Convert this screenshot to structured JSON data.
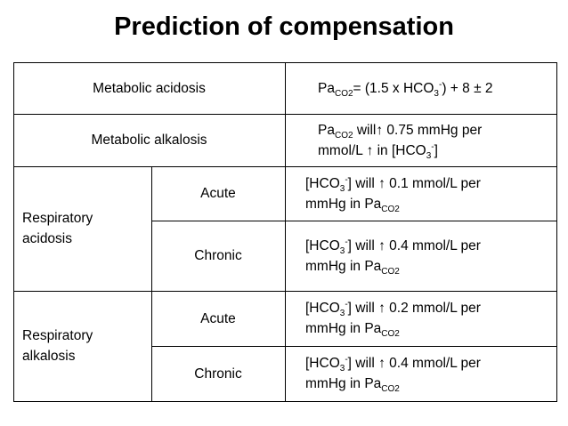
{
  "title": "Prediction of compensation",
  "table": {
    "rows": [
      {
        "condition": "Metabolic acidosis",
        "rule": [
          [
            {
              "text": "Pa"
            },
            {
              "sub": "CO2"
            },
            {
              "text": "= (1.5 x HCO"
            },
            {
              "sub": "3"
            },
            {
              "sup": "-"
            },
            {
              "text": ") + 8 ± 2"
            }
          ]
        ]
      },
      {
        "condition": "Metabolic alkalosis",
        "rule": [
          [
            {
              "text": "Pa"
            },
            {
              "sub": "CO2"
            },
            {
              "text": " will↑ 0.75 mmHg per"
            }
          ],
          [
            {
              "text": "mmol/L ↑ in [HCO"
            },
            {
              "sub": "3"
            },
            {
              "sup": "-"
            },
            {
              "text": "]"
            }
          ]
        ]
      },
      {
        "condition": "Respiratory acidosis",
        "phases": [
          {
            "phase": "Acute",
            "rule": [
              [
                {
                  "text": "[HCO"
                },
                {
                  "sub": "3"
                },
                {
                  "sup": "-"
                },
                {
                  "text": "] will ↑ 0.1 mmol/L per"
                }
              ],
              [
                {
                  "text": "mmHg in Pa"
                },
                {
                  "sub": "CO2"
                }
              ]
            ]
          },
          {
            "phase": "Chronic",
            "rule": [
              [
                {
                  "text": "[HCO"
                },
                {
                  "sub": "3"
                },
                {
                  "sup": "-"
                },
                {
                  "text": "] will ↑ 0.4 mmol/L per"
                }
              ],
              [
                {
                  "text": "mmHg in Pa"
                },
                {
                  "sub": "CO2"
                }
              ]
            ]
          }
        ]
      },
      {
        "condition": "Respiratory alkalosis",
        "phases": [
          {
            "phase": "Acute",
            "rule": [
              [
                {
                  "text": "[HCO"
                },
                {
                  "sub": "3"
                },
                {
                  "sup": "-"
                },
                {
                  "text": "] will ↑ 0.2 mmol/L per"
                }
              ],
              [
                {
                  "text": "mmHg in Pa"
                },
                {
                  "sub": "CO2"
                }
              ]
            ]
          },
          {
            "phase": "Chronic",
            "rule": [
              [
                {
                  "text": "[HCO"
                },
                {
                  "sub": "3"
                },
                {
                  "sup": "-"
                },
                {
                  "text": "] will ↑ 0.4 mmol/L per"
                }
              ],
              [
                {
                  "text": "mmHg in Pa"
                },
                {
                  "sub": "CO2"
                }
              ]
            ]
          }
        ]
      }
    ]
  }
}
